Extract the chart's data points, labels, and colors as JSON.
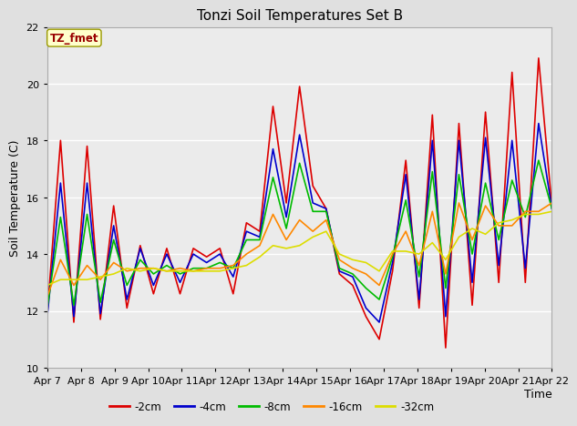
{
  "title": "Tonzi Soil Temperatures Set B",
  "xlabel": "Time",
  "ylabel": "Soil Temperature (C)",
  "ylim": [
    10,
    22
  ],
  "tick_labels": [
    "Apr 7",
    "Apr 8",
    "Apr 9",
    "Apr 10",
    "Apr 11",
    "Apr 12",
    "Apr 13",
    "Apr 14",
    "Apr 15",
    "Apr 16",
    "Apr 17",
    "Apr 18",
    "Apr 19",
    "Apr 20",
    "Apr 21",
    "Apr 22"
  ],
  "bg_color": "#e0e0e0",
  "plot_bg": "#ebebeb",
  "annotation_text": "TZ_fmet",
  "annotation_bg": "#ffffcc",
  "annotation_fg": "#990000",
  "series": {
    "-2cm": {
      "color": "#dd0000",
      "values": [
        11.9,
        18.0,
        11.6,
        17.8,
        11.7,
        15.7,
        12.1,
        14.3,
        12.6,
        14.2,
        12.6,
        14.2,
        13.9,
        14.2,
        12.6,
        15.1,
        14.8,
        19.2,
        15.8,
        19.9,
        16.4,
        15.6,
        13.3,
        12.9,
        11.8,
        11.0,
        13.4,
        17.3,
        12.1,
        18.9,
        10.7,
        18.6,
        12.2,
        19.0,
        13.0,
        20.4,
        13.0,
        20.9,
        15.7
      ]
    },
    "-4cm": {
      "color": "#0000cc",
      "values": [
        11.8,
        16.5,
        11.8,
        16.5,
        11.9,
        15.0,
        12.4,
        14.2,
        12.9,
        14.0,
        13.0,
        14.0,
        13.7,
        14.0,
        13.2,
        14.8,
        14.6,
        17.7,
        15.3,
        18.2,
        15.8,
        15.6,
        13.4,
        13.2,
        12.1,
        11.6,
        13.7,
        16.8,
        12.4,
        18.0,
        11.8,
        18.0,
        13.0,
        18.1,
        13.6,
        18.0,
        13.5,
        18.6,
        15.6
      ]
    },
    "-8cm": {
      "color": "#00bb00",
      "values": [
        12.1,
        15.3,
        12.2,
        15.4,
        12.3,
        14.5,
        12.9,
        13.8,
        13.3,
        13.6,
        13.3,
        13.5,
        13.5,
        13.7,
        13.5,
        14.5,
        14.5,
        16.7,
        14.9,
        17.2,
        15.5,
        15.5,
        13.5,
        13.3,
        12.8,
        12.4,
        13.9,
        15.9,
        13.2,
        16.9,
        12.8,
        16.8,
        14.0,
        16.5,
        14.5,
        16.6,
        15.3,
        17.3,
        15.6
      ]
    },
    "-16cm": {
      "color": "#ff8800",
      "values": [
        12.5,
        13.8,
        12.9,
        13.6,
        13.1,
        13.7,
        13.4,
        13.5,
        13.5,
        13.4,
        13.5,
        13.4,
        13.5,
        13.5,
        13.6,
        14.0,
        14.3,
        15.4,
        14.5,
        15.2,
        14.8,
        15.2,
        13.8,
        13.5,
        13.3,
        12.9,
        14.0,
        14.8,
        13.6,
        15.5,
        13.3,
        15.8,
        14.5,
        15.7,
        15.0,
        15.0,
        15.5,
        15.5,
        15.8
      ]
    },
    "-32cm": {
      "color": "#dddd00",
      "values": [
        12.9,
        13.1,
        13.1,
        13.1,
        13.2,
        13.3,
        13.5,
        13.4,
        13.5,
        13.4,
        13.4,
        13.4,
        13.4,
        13.4,
        13.5,
        13.6,
        13.9,
        14.3,
        14.2,
        14.3,
        14.6,
        14.8,
        14.0,
        13.8,
        13.7,
        13.4,
        14.1,
        14.1,
        14.0,
        14.4,
        13.8,
        14.6,
        14.9,
        14.7,
        15.1,
        15.2,
        15.4,
        15.4,
        15.5
      ]
    }
  }
}
